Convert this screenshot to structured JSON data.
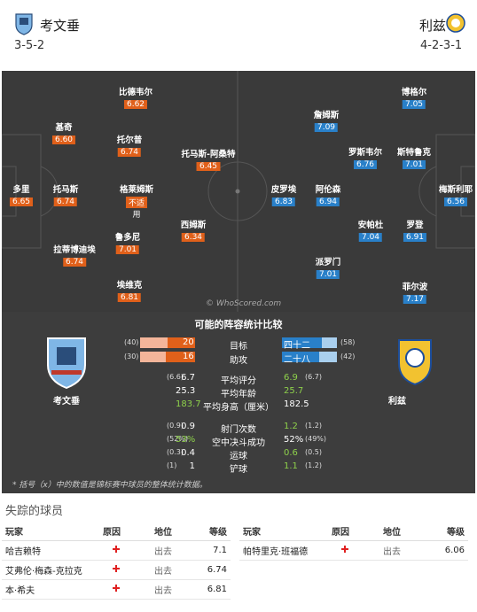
{
  "header": {
    "home_name": "考文垂",
    "home_formation": "3-5-2",
    "away_name": "利兹",
    "away_formation": "4-2-3-1"
  },
  "home_players": [
    {
      "name": "比德韦尔",
      "rating": "6.62"
    },
    {
      "name": "基奇",
      "rating": "6.60"
    },
    {
      "name": "托尔普",
      "rating": "6.74"
    },
    {
      "name": "托马斯-阿桑特",
      "rating": "6.45"
    },
    {
      "name": "多里",
      "rating": "6.65"
    },
    {
      "name": "托马斯",
      "rating": "6.74"
    },
    {
      "name": "格莱姆斯",
      "rating": "不适",
      "note": "用"
    },
    {
      "name": "西姆斯",
      "rating": "6.34"
    },
    {
      "name": "拉蒂博迪埃",
      "rating": "6.74"
    },
    {
      "name": "鲁多尼",
      "rating": "7.01"
    },
    {
      "name": "埃维克",
      "rating": "6.81"
    }
  ],
  "away_players": [
    {
      "name": "博格尔",
      "rating": "7.05"
    },
    {
      "name": "詹姆斯",
      "rating": "7.09"
    },
    {
      "name": "罗斯韦尔",
      "rating": "6.76"
    },
    {
      "name": "斯特鲁克",
      "rating": "7.01"
    },
    {
      "name": "皮罗埃",
      "rating": "6.83"
    },
    {
      "name": "阿伦森",
      "rating": "6.94"
    },
    {
      "name": "梅斯利耶",
      "rating": "6.56"
    },
    {
      "name": "安帕杜",
      "rating": "7.04"
    },
    {
      "name": "罗登",
      "rating": "6.91"
    },
    {
      "name": "派罗门",
      "rating": "7.01"
    },
    {
      "name": "菲尔波",
      "rating": "7.17"
    }
  ],
  "watermark": "© WhoScored.com",
  "stats": {
    "title": "可能的阵容统计比较",
    "home_team": "考文垂",
    "away_team": "利兹",
    "goals": {
      "label": "目标",
      "home_total": "(40)",
      "home": "20",
      "home_fraction": 0.5,
      "away": "四十二",
      "away_total": "(58)",
      "away_fraction": 0.72
    },
    "assists": {
      "label": "助攻",
      "home_total": "(30)",
      "home": "16",
      "home_fraction": 0.53,
      "away": "二十八",
      "away_total": "(42)",
      "away_fraction": 0.67
    },
    "rows": [
      {
        "label": "平均评分",
        "home_small": "(6.6)",
        "home": "6.7",
        "away": "6.9",
        "away_small": "(6.7)",
        "away_green": true,
        "home_green": false
      },
      {
        "label": "平均年龄",
        "home_small": "",
        "home": "25.3",
        "away": "25.7",
        "away_small": "",
        "away_green": true,
        "home_green": false
      },
      {
        "label": "平均身高（厘米）",
        "home_small": "",
        "home": "183.7",
        "away": "182.5",
        "away_small": "",
        "away_green": false,
        "home_green": true
      },
      {
        "label": "射门次数",
        "home_small": "(0.9)",
        "home": "0.9",
        "away": "1.2",
        "away_small": "(1.2)",
        "away_green": true,
        "home_green": false
      },
      {
        "label": "空中决斗成功",
        "home_small": "(52%)",
        "home": "53%",
        "away": "52%",
        "away_small": "(49%)",
        "away_green": false,
        "home_green": true
      },
      {
        "label": "运球",
        "home_small": "(0.3)",
        "home": "0.4",
        "away": "0.6",
        "away_small": "(0.5)",
        "away_green": true,
        "home_green": false
      },
      {
        "label": "铲球",
        "home_small": "(1)",
        "home": "1",
        "away": "1.1",
        "away_small": "(1.2)",
        "away_green": true,
        "home_green": false
      }
    ],
    "footnote": "* 括号（x）中的数值是锦标赛中球员的整体统计数据。"
  },
  "missing": {
    "title": "失踪的球员",
    "headers": {
      "player": "玩家",
      "reason": "原因",
      "status": "地位",
      "rating": "等级"
    },
    "home": [
      {
        "player": "哈吉赖特",
        "status": "出去",
        "rating": "7.1"
      },
      {
        "player": "艾弗伦·梅森-克拉克",
        "status": "出去",
        "rating": "6.74"
      },
      {
        "player": "本·希夫",
        "status": "出去",
        "rating": "6.81"
      }
    ],
    "away": [
      {
        "player": "帕特里克·班福德",
        "status": "出去",
        "rating": "6.06"
      }
    ]
  }
}
